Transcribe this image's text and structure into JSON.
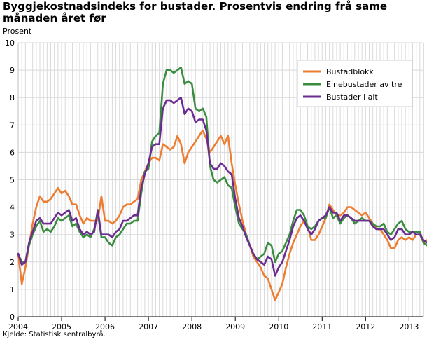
{
  "chart_data": {
    "type": "line",
    "title": "Byggjekostnadsindeks for bustader. Prosentvis endring frå same månaden året før",
    "ylabel": "Prosent",
    "xlabel": "",
    "ylim": [
      0,
      10
    ],
    "yticks": [
      "0",
      "1",
      "2",
      "3",
      "4",
      "5",
      "6",
      "7",
      "8",
      "9",
      "10"
    ],
    "xticks": [
      "2004",
      "2005",
      "2006",
      "2007",
      "2008",
      "2009",
      "2010",
      "2011",
      "2012",
      "2013"
    ],
    "xstart": 2004.0,
    "xend": 2013.333,
    "grid": true,
    "legend_position": "top-right",
    "series": [
      {
        "name": "Bustadblokk",
        "color": "#ed7d31",
        "values": [
          2.3,
          1.2,
          1.8,
          2.6,
          3.4,
          4.0,
          4.4,
          4.2,
          4.2,
          4.3,
          4.5,
          4.7,
          4.5,
          4.6,
          4.4,
          4.1,
          4.1,
          3.7,
          3.4,
          3.6,
          3.5,
          3.5,
          3.5,
          4.4,
          3.5,
          3.5,
          3.4,
          3.5,
          3.7,
          4.0,
          4.1,
          4.1,
          4.2,
          4.3,
          5.0,
          5.3,
          5.6,
          5.8,
          5.8,
          5.7,
          6.3,
          6.2,
          6.1,
          6.2,
          6.6,
          6.3,
          5.6,
          6.0,
          6.2,
          6.4,
          6.6,
          6.8,
          6.5,
          6.0,
          6.2,
          6.4,
          6.6,
          6.3,
          6.6,
          5.6,
          4.8,
          4.1,
          3.5,
          3.0,
          2.6,
          2.2,
          2.0,
          1.8,
          1.5,
          1.4,
          1.0,
          0.6,
          0.9,
          1.2,
          1.8,
          2.3,
          2.7,
          3.0,
          3.3,
          3.5,
          3.3,
          2.8,
          2.8,
          3.0,
          3.3,
          3.6,
          4.1,
          3.9,
          3.7,
          3.7,
          3.8,
          4.0,
          4.0,
          3.9,
          3.8,
          3.7,
          3.8,
          3.6,
          3.4,
          3.2,
          3.2,
          3.0,
          2.8,
          2.5,
          2.5,
          2.8,
          2.9,
          2.8,
          2.9,
          2.8,
          3.0,
          3.0,
          2.7,
          2.8
        ]
      },
      {
        "name": "Einebustader av tre",
        "color": "#3a8d3f",
        "values": [
          2.3,
          2.0,
          2.0,
          2.6,
          3.0,
          3.3,
          3.5,
          3.1,
          3.2,
          3.1,
          3.3,
          3.6,
          3.5,
          3.6,
          3.7,
          3.3,
          3.4,
          3.1,
          2.9,
          3.0,
          2.9,
          3.2,
          3.8,
          2.9,
          2.9,
          2.7,
          2.6,
          2.9,
          3.0,
          3.2,
          3.4,
          3.4,
          3.5,
          3.5,
          4.5,
          5.3,
          5.4,
          6.4,
          6.6,
          6.7,
          8.5,
          9.0,
          9.0,
          8.9,
          9.0,
          9.1,
          8.5,
          8.6,
          8.5,
          7.6,
          7.5,
          7.6,
          7.3,
          5.5,
          5.0,
          4.9,
          5.0,
          5.1,
          4.8,
          4.7,
          4.0,
          3.4,
          3.2,
          3.0,
          2.6,
          2.3,
          2.1,
          2.2,
          2.3,
          2.7,
          2.6,
          2.0,
          2.3,
          2.4,
          2.7,
          3.0,
          3.5,
          3.9,
          3.9,
          3.7,
          3.3,
          3.2,
          3.3,
          3.5,
          3.6,
          3.6,
          4.0,
          3.6,
          3.7,
          3.4,
          3.6,
          3.7,
          3.6,
          3.4,
          3.5,
          3.6,
          3.5,
          3.5,
          3.4,
          3.3,
          3.3,
          3.4,
          3.1,
          3.0,
          3.2,
          3.4,
          3.5,
          3.2,
          3.1,
          3.1,
          3.1,
          3.1,
          2.7,
          2.6
        ]
      },
      {
        "name": "Bustader i alt",
        "color": "#6b2c91",
        "values": [
          2.3,
          1.9,
          2.0,
          2.7,
          3.1,
          3.5,
          3.6,
          3.4,
          3.4,
          3.4,
          3.6,
          3.8,
          3.7,
          3.8,
          3.9,
          3.5,
          3.6,
          3.2,
          3.0,
          3.1,
          3.0,
          3.1,
          3.9,
          3.0,
          3.0,
          3.0,
          2.9,
          3.1,
          3.2,
          3.5,
          3.5,
          3.6,
          3.7,
          3.7,
          4.7,
          5.2,
          5.6,
          6.2,
          6.3,
          6.3,
          7.6,
          7.9,
          7.9,
          7.8,
          7.9,
          8.0,
          7.4,
          7.6,
          7.5,
          7.1,
          7.2,
          7.2,
          6.8,
          5.6,
          5.4,
          5.4,
          5.6,
          5.5,
          5.3,
          5.2,
          4.3,
          3.6,
          3.3,
          2.9,
          2.6,
          2.3,
          2.1,
          2.0,
          1.9,
          2.2,
          2.1,
          1.5,
          1.8,
          2.0,
          2.4,
          2.8,
          3.3,
          3.6,
          3.7,
          3.5,
          3.2,
          3.0,
          3.2,
          3.5,
          3.6,
          3.7,
          4.0,
          3.8,
          3.8,
          3.5,
          3.7,
          3.7,
          3.6,
          3.5,
          3.5,
          3.5,
          3.5,
          3.5,
          3.3,
          3.2,
          3.2,
          3.2,
          3.0,
          2.8,
          2.9,
          3.2,
          3.2,
          3.0,
          3.0,
          3.1,
          3.0,
          3.0,
          2.8,
          2.7
        ]
      }
    ]
  },
  "source": "Kjelde: Statistisk sentralbyrå."
}
